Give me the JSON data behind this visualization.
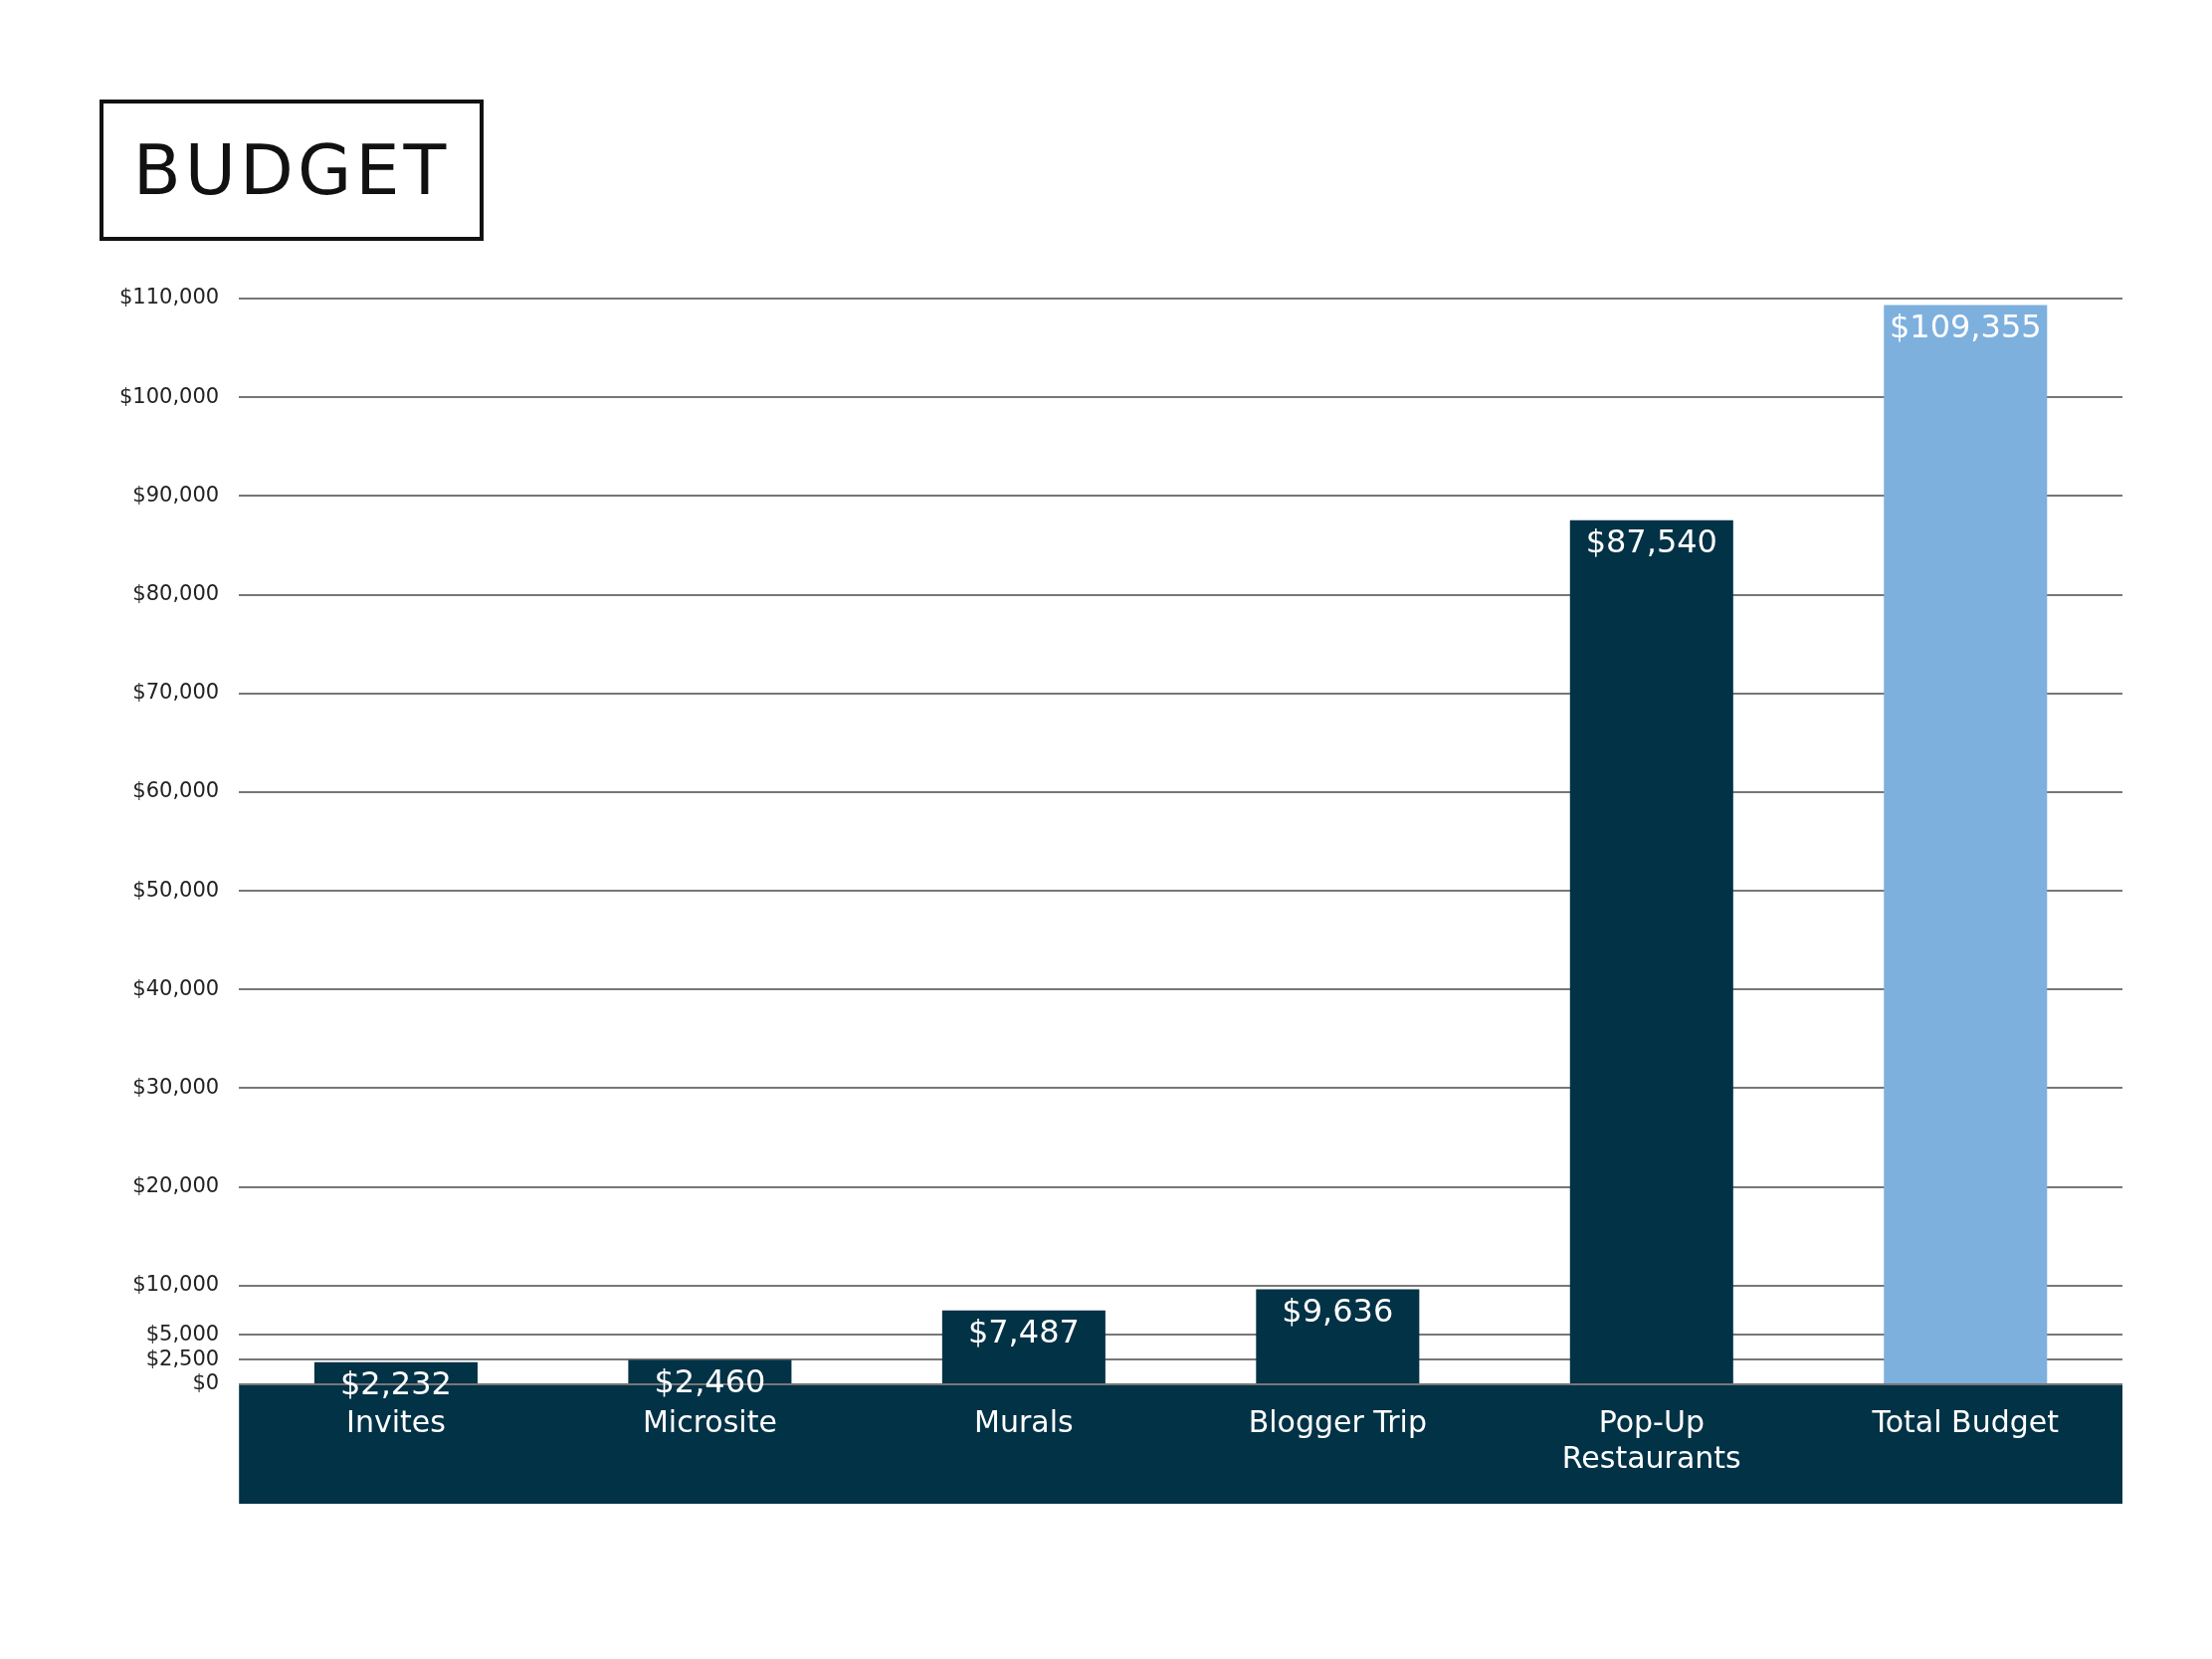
{
  "chart_data": {
    "type": "bar",
    "title": "BUDGET",
    "categories": [
      "Invites",
      "Microsite",
      "Murals",
      "Blogger Trip",
      "Pop-Up Restaurants",
      "Total Budget"
    ],
    "values": [
      2232,
      2460,
      7487,
      9636,
      87540,
      109355
    ],
    "value_labels": [
      "$2,232",
      "$2,460",
      "$7,487",
      "$9,636",
      "$87,540",
      "$109,355"
    ],
    "colors": [
      "#023246",
      "#023246",
      "#023246",
      "#023246",
      "#023246",
      "#7eb0de"
    ],
    "ylim": [
      0,
      110000
    ],
    "yticks": [
      {
        "value": 0,
        "label": "$0"
      },
      {
        "value": 2500,
        "label": "$2,500"
      },
      {
        "value": 5000,
        "label": "$5,000"
      },
      {
        "value": 10000,
        "label": "$10,000"
      },
      {
        "value": 20000,
        "label": "$20,000"
      },
      {
        "value": 30000,
        "label": "$30,000"
      },
      {
        "value": 40000,
        "label": "$40,000"
      },
      {
        "value": 50000,
        "label": "$50,000"
      },
      {
        "value": 60000,
        "label": "$60,000"
      },
      {
        "value": 70000,
        "label": "$70,000"
      },
      {
        "value": 80000,
        "label": "$80,000"
      },
      {
        "value": 90000,
        "label": "$90,000"
      },
      {
        "value": 100000,
        "label": "$100,000"
      },
      {
        "value": 110000,
        "label": "$110,000"
      }
    ],
    "grid": "y"
  }
}
